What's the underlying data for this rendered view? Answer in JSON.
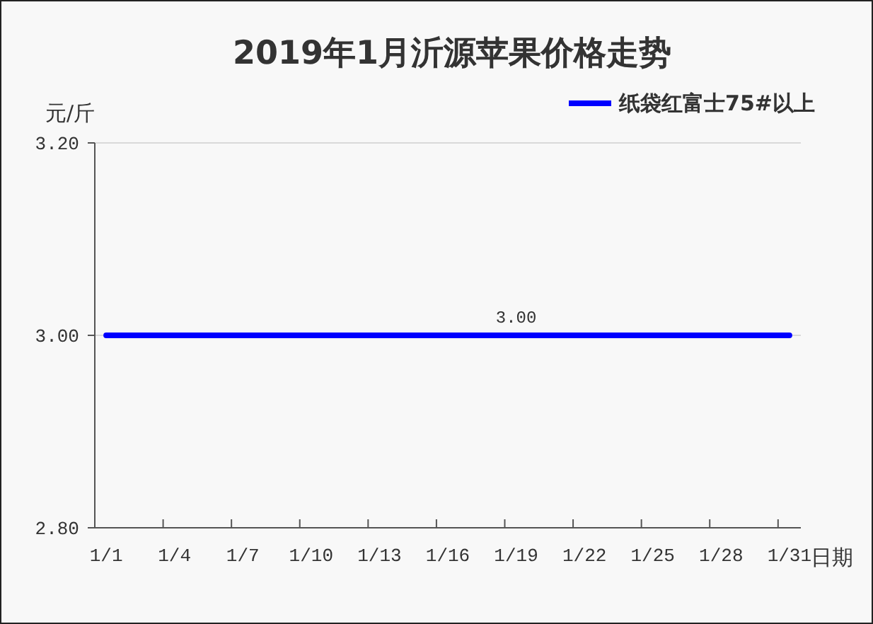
{
  "chart_data": {
    "type": "line",
    "title": "2019年1月沂源苹果价格走势",
    "xlabel": "日期",
    "ylabel": "元/斤",
    "categories": [
      "1/1",
      null,
      null,
      "1/4",
      null,
      null,
      "1/7",
      null,
      null,
      "1/10",
      null,
      null,
      "1/13",
      null,
      null,
      "1/16",
      null,
      null,
      "1/19",
      null,
      null,
      "1/22",
      null,
      null,
      "1/25",
      null,
      null,
      "1/28",
      null,
      null,
      "1/31"
    ],
    "series": [
      {
        "name": "纸袋红富士75#以上",
        "color": "#0000ff",
        "values": [
          3,
          3,
          3,
          3,
          3,
          3,
          3,
          3,
          3,
          3,
          3,
          3,
          3,
          3,
          3,
          3,
          3,
          3,
          3,
          3,
          3,
          3,
          3,
          3,
          3,
          3,
          3,
          3,
          3,
          3,
          3
        ],
        "value_labels": [
          null,
          null,
          null,
          null,
          null,
          null,
          null,
          null,
          null,
          null,
          null,
          null,
          null,
          null,
          null,
          null,
          null,
          null,
          "3.00",
          null,
          null,
          null,
          null,
          null,
          null,
          null,
          null,
          null,
          null,
          null,
          null
        ]
      }
    ],
    "ylim": [
      2.8,
      3.2
    ],
    "yticks": [
      {
        "value": 2.8,
        "label": "2.80"
      },
      {
        "value": 3.0,
        "label": "3.00"
      },
      {
        "value": 3.2,
        "label": "3.20"
      }
    ],
    "grid": "y",
    "legend": "top right",
    "marker": "none",
    "line_style": "solid"
  }
}
